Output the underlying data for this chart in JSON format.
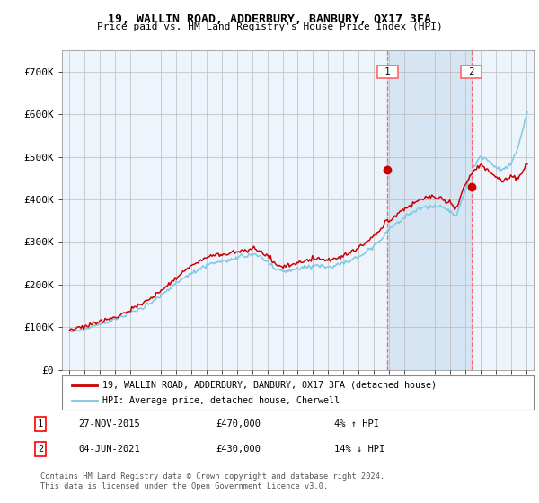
{
  "title": "19, WALLIN ROAD, ADDERBURY, BANBURY, OX17 3FA",
  "subtitle": "Price paid vs. HM Land Registry's House Price Index (HPI)",
  "legend_line1": "19, WALLIN ROAD, ADDERBURY, BANBURY, OX17 3FA (detached house)",
  "legend_line2": "HPI: Average price, detached house, Cherwell",
  "footnote": "Contains HM Land Registry data © Crown copyright and database right 2024.\nThis data is licensed under the Open Government Licence v3.0.",
  "sale1_label": "1",
  "sale1_date": "27-NOV-2015",
  "sale1_price": "£470,000",
  "sale1_hpi": "4% ↑ HPI",
  "sale2_label": "2",
  "sale2_date": "04-JUN-2021",
  "sale2_price": "£430,000",
  "sale2_hpi": "14% ↓ HPI",
  "sale1_x": 2015.9,
  "sale2_x": 2021.42,
  "sale1_y": 470000,
  "sale2_y": 430000,
  "hpi_color": "#7ec8e3",
  "price_color": "#cc0000",
  "vline_color": "#ff6666",
  "shade_color": "#cce0f0",
  "background_color": "#eef4fb",
  "ylim": [
    0,
    750000
  ],
  "xlim": [
    1994.5,
    2025.5
  ],
  "yticks": [
    0,
    100000,
    200000,
    300000,
    400000,
    500000,
    600000,
    700000
  ],
  "ytick_labels": [
    "£0",
    "£100K",
    "£200K",
    "£300K",
    "£400K",
    "£500K",
    "£600K",
    "£700K"
  ],
  "xticks": [
    1995,
    1996,
    1997,
    1998,
    1999,
    2000,
    2001,
    2002,
    2003,
    2004,
    2005,
    2006,
    2007,
    2008,
    2009,
    2010,
    2011,
    2012,
    2013,
    2014,
    2015,
    2016,
    2017,
    2018,
    2019,
    2020,
    2021,
    2022,
    2023,
    2024,
    2025
  ]
}
